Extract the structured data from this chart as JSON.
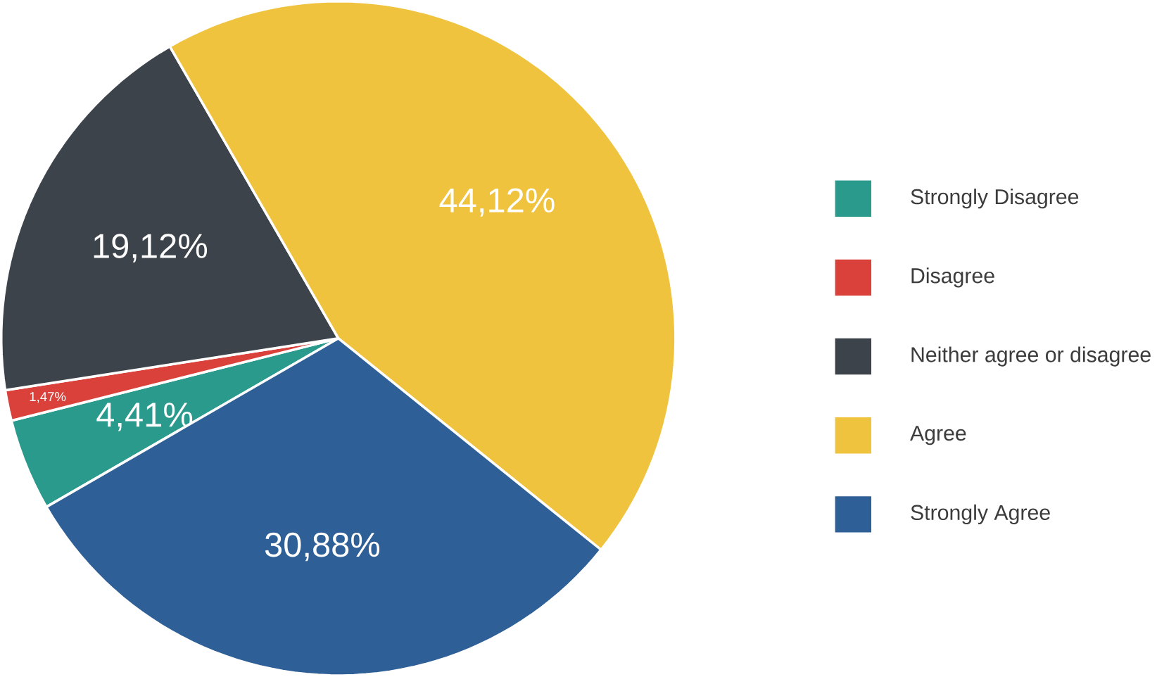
{
  "chart_data": {
    "type": "pie",
    "categories": [
      "Strongly Disagree",
      "Disagree",
      "Neither agree or disagree",
      "Agree",
      "Strongly Agree"
    ],
    "values": [
      4.41,
      1.47,
      19.12,
      44.12,
      30.88
    ],
    "value_labels": [
      "4,41%",
      "1,47%",
      "19,12%",
      "44,12%",
      "30,88%"
    ],
    "colors": [
      "#2a9a8c",
      "#d9413a",
      "#3d434b",
      "#f0c33f",
      "#2e5f96"
    ],
    "legend": "right"
  }
}
